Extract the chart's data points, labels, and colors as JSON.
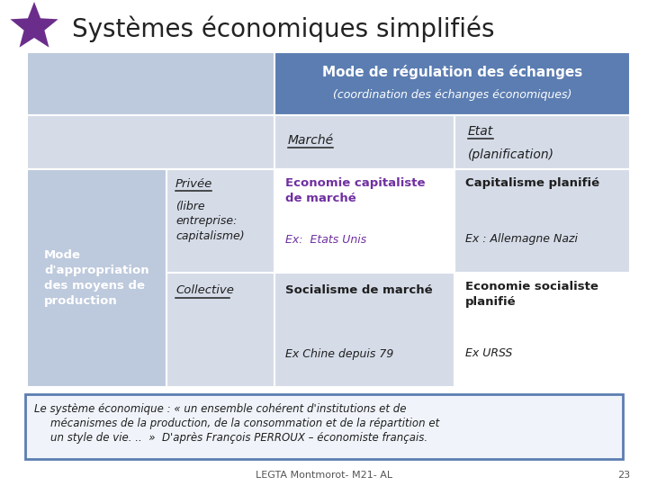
{
  "title": "Systèmes économiques simplifiés",
  "title_fontsize": 20,
  "title_color": "#222222",
  "star_color": "#6B2D8B",
  "bg_color": "#FFFFFF",
  "header_blue": "#5B7DB1",
  "light_blue": "#BDC9DC",
  "lighter_blue": "#D5DCE8",
  "white": "#FFFFFF",
  "purple_text": "#7030A0",
  "dark_text": "#1F1F1F",
  "quote_border": "#5B7DB1",
  "quote_bg": "#F0F4FA",
  "footer_text": "LEGTA Montmorot- M21- AL",
  "footer_page": "23",
  "row_header_label": "Mode\nd'appropriation\ndes moyens de\nproduction",
  "col_header_main": "Mode de régulation des échanges",
  "col_header_sub": "(coordination des échanges économiques)",
  "col1_header": "Marché",
  "col2_header": "Etat",
  "col2_header2": "(planification)",
  "row1_label_main": "Privée",
  "row1_label_sub": "(libre\nentreprise:\ncapitalisme)",
  "row2_label": "Collective",
  "cell_r1c1_main": "Economie capitaliste\nde marché",
  "cell_r1c1_ex": "Ex:  Etats Unis",
  "cell_r1c2_main": "Capitalisme planifié",
  "cell_r1c2_ex": "Ex : Allemagne Nazi",
  "cell_r2c1_main": "Socialisme de marché",
  "cell_r2c1_ex": "Ex Chine depuis 79",
  "cell_r2c2_main": "Economie socialiste\nplanifié",
  "cell_r2c2_ex": "Ex URSS",
  "quote_line1": "Le système économique : « un ensemble cohérent d'institutions et de",
  "quote_line2": "mécanismes de la production, de la consommation et de la répartition et",
  "quote_line3": "un style de vie. ..  »  D'après François PERROUX – économiste français."
}
